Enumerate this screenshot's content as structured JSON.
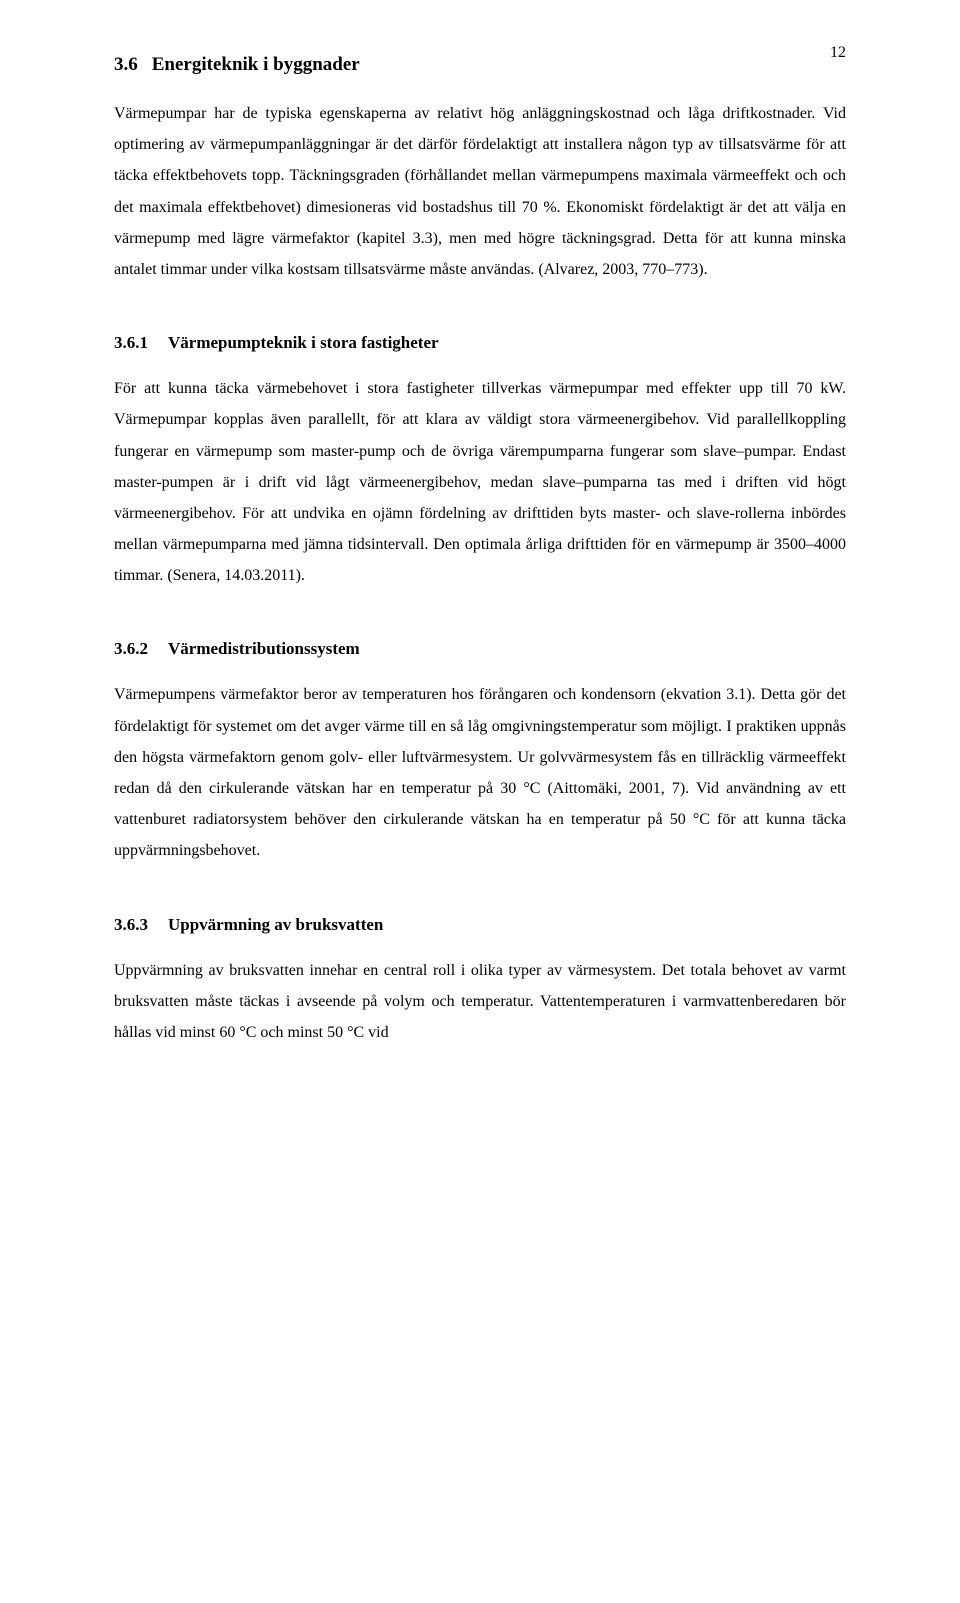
{
  "page_number": "12",
  "section": {
    "number": "3.6",
    "title": "Energiteknik i byggnader",
    "body": "Värmepumpar har de typiska egenskaperna av relativt hög anläggningskostnad och låga driftkostnader. Vid optimering av värmepumpanläggningar är det därför fördelaktigt att installera någon typ av tillsatsvärme för att täcka effektbehovets topp. Täckningsgraden (förhållandet mellan värmepumpens maximala värmeeffekt och och det maximala effektbehovet) dimesioneras vid bostadshus till 70 %. Ekonomiskt fördelaktigt är det att välja en värmepump med lägre värmefaktor (kapitel 3.3), men med högre täckningsgrad. Detta för att kunna minska antalet timmar under vilka kostsam tillsatsvärme måste användas. (Alvarez, 2003, 770–773)."
  },
  "subsections": [
    {
      "number": "3.6.1",
      "title": "Värmepumpteknik i stora fastigheter",
      "body": "För att kunna täcka värmebehovet i stora fastigheter tillverkas värmepumpar med effekter upp till 70 kW. Värmepumpar kopplas även parallellt, för att klara av väldigt stora värmeenergibehov. Vid parallellkoppling fungerar en värmepump som master-pump och de övriga värempumparna fungerar som slave–pumpar. Endast master-pumpen är i drift vid lågt värmeenergibehov, medan slave–pumparna tas med i driften vid högt värmeenergibehov. För att undvika en ojämn fördelning av drifttiden byts master- och slave-rollerna inbördes mellan värmepumparna med jämna tidsintervall. Den optimala årliga drifttiden för en värmepump är 3500–4000 timmar. (Senera, 14.03.2011)."
    },
    {
      "number": "3.6.2",
      "title": "Värmedistributionssystem",
      "body": "Värmepumpens värmefaktor beror av temperaturen hos förångaren och kondensorn (ekvation 3.1). Detta gör det fördelaktigt för systemet om det avger värme till en så låg omgivningstemperatur som möjligt. I praktiken uppnås den högsta värmefaktorn genom golv- eller luftvärmesystem. Ur golvvärmesystem fås en tillräcklig värmeeffekt redan då den cirkulerande vätskan har en temperatur på 30 °C (Aittomäki, 2001, 7). Vid användning av ett vattenburet radiatorsystem behöver den cirkulerande vätskan ha en temperatur på 50 °C för att kunna täcka uppvärmningsbehovet."
    },
    {
      "number": "3.6.3",
      "title": "Uppvärmning av bruksvatten",
      "body": "Uppvärmning av bruksvatten innehar en central roll i olika typer av värmesystem. Det totala behovet av varmt bruksvatten måste täckas i avseende på volym och temperatur. Vattentemperaturen i varmvattenberedaren bör hållas vid minst 60 °C och minst 50 °C vid"
    }
  ]
}
